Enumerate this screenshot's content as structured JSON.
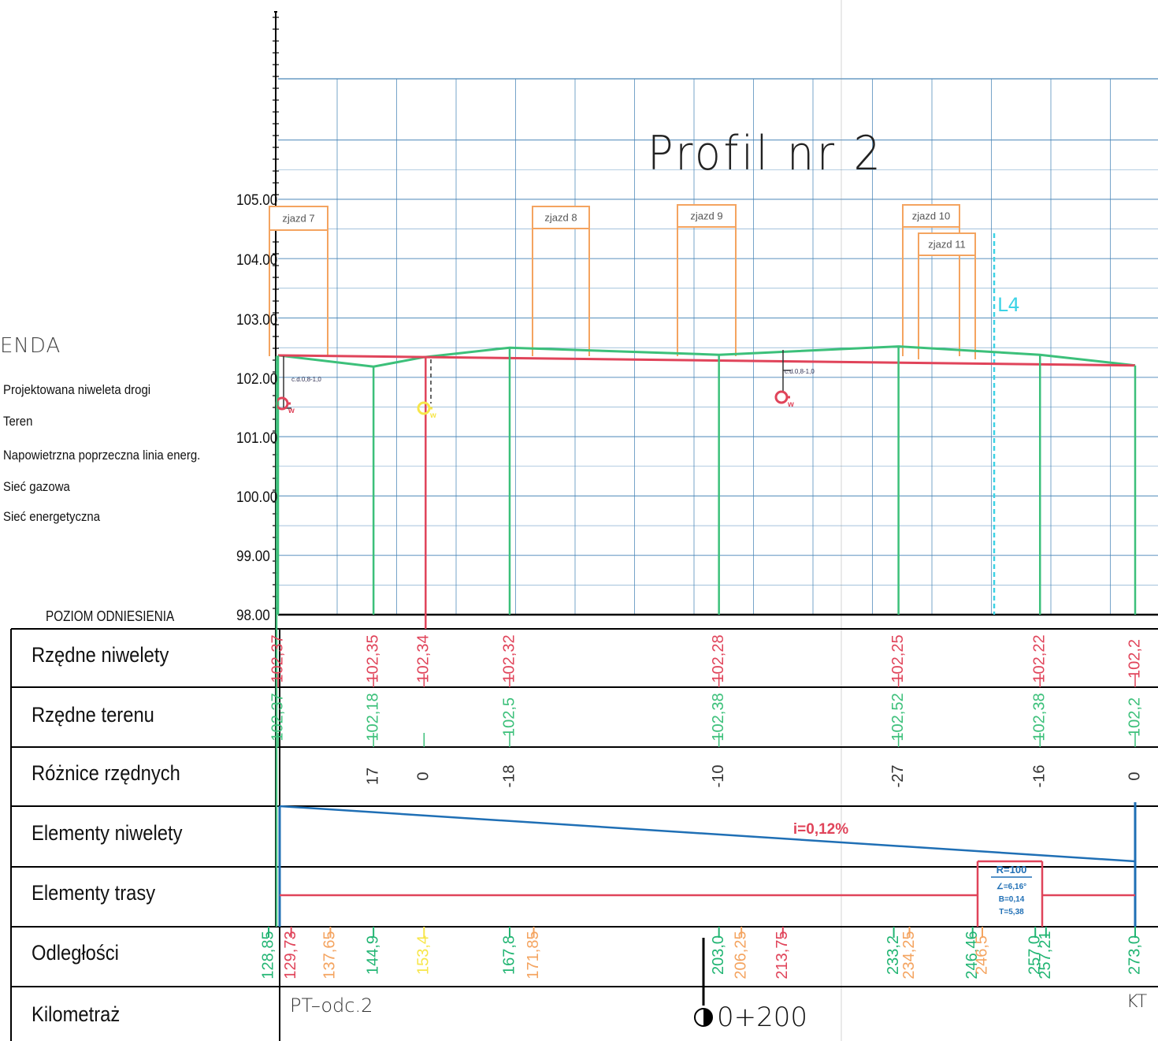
{
  "title": "Profil nr 2",
  "legend": {
    "title": "ENDA",
    "items": [
      "Projektowana niweleta drogi",
      "Teren",
      "Napowietrzna poprzeczna linia energ.",
      "Sieć gazowa",
      "Sieć energetyczna"
    ]
  },
  "y_axis": {
    "labels": [
      "105.00",
      "104.00",
      "103.00",
      "102.00",
      "101.00",
      "100.00",
      "99.00",
      "98.00"
    ],
    "reference_label": "POZIOM ODNIESIENIA"
  },
  "table_rows": [
    "Rzędne niwelety",
    "Rzędne terenu",
    "Różnice rzędnych",
    "Elementy niwelety",
    "Elementy trasy",
    "Odległości",
    "Kilometraż"
  ],
  "stations": [
    {
      "dist": 128.85,
      "niweleta": "102,37",
      "teren": "102,37",
      "roznica": ""
    },
    {
      "dist": 144.9,
      "niweleta": "102,35",
      "teren": "102,18",
      "roznica": "17"
    },
    {
      "dist": 153.4,
      "niweleta": "102,34",
      "teren": "",
      "roznica": "0"
    },
    {
      "dist": 167.8,
      "niweleta": "102,32",
      "teren": "102,5",
      "roznica": "-18"
    },
    {
      "dist": 203.0,
      "niweleta": "102,28",
      "teren": "102,38",
      "roznica": "-10"
    },
    {
      "dist": 233.2,
      "niweleta": "102,25",
      "teren": "102,52",
      "roznica": "-27"
    },
    {
      "dist": 257.0,
      "niweleta": "102,22",
      "teren": "102,38",
      "roznica": "-16"
    },
    {
      "dist": 273.0,
      "niweleta": "102,2",
      "teren": "102,2",
      "roznica": "0"
    }
  ],
  "odleglosci": [
    {
      "text": "128,85",
      "color": "#22b573"
    },
    {
      "text": "129,73",
      "color": "#e0445a"
    },
    {
      "text": "137,65",
      "color": "#f4a460"
    },
    {
      "text": "144,9",
      "color": "#22b573"
    },
    {
      "text": "153,4",
      "color": "#f7e64a"
    },
    {
      "text": "167,8",
      "color": "#22b573"
    },
    {
      "text": "171,85",
      "color": "#f4a460"
    },
    {
      "text": "203,0",
      "color": "#22b573"
    },
    {
      "text": "206,25",
      "color": "#f4a460"
    },
    {
      "text": "213,75",
      "color": "#e0445a"
    },
    {
      "text": "233,2",
      "color": "#22b573"
    },
    {
      "text": "234,25",
      "color": "#f4a460"
    },
    {
      "text": "246,46",
      "color": "#22b573"
    },
    {
      "text": "246,5",
      "color": "#f4a460"
    },
    {
      "text": "257,0",
      "color": "#22b573"
    },
    {
      "text": "257,21",
      "color": "#22b573"
    },
    {
      "text": "273,0",
      "color": "#22b573"
    }
  ],
  "zjazdy": [
    "zjazd 7",
    "zjazd 8",
    "zjazd 9",
    "zjazd 10",
    "zjazd 11"
  ],
  "power_line_label": "L4",
  "utility_depth_label": "c.d.0,8-1,0",
  "utility_marker_letter": "w",
  "elementy_niwelety": {
    "slope": "i=0,12%"
  },
  "elementy_trasy": {
    "curve": [
      "R=100",
      "∠=6,16°",
      "B=0,14",
      "T=5,38"
    ]
  },
  "kilometraz": {
    "start": "PT–odc.2",
    "marker": "0+200",
    "end": "KT"
  },
  "colors": {
    "grid": "#4a86b8",
    "niweleta": "#e0445a",
    "teren": "#3cc07a",
    "zjazd": "#f4a460",
    "gas": "#f7e64a",
    "power": "#3cd3e6",
    "slope": "#1f6fb5"
  }
}
